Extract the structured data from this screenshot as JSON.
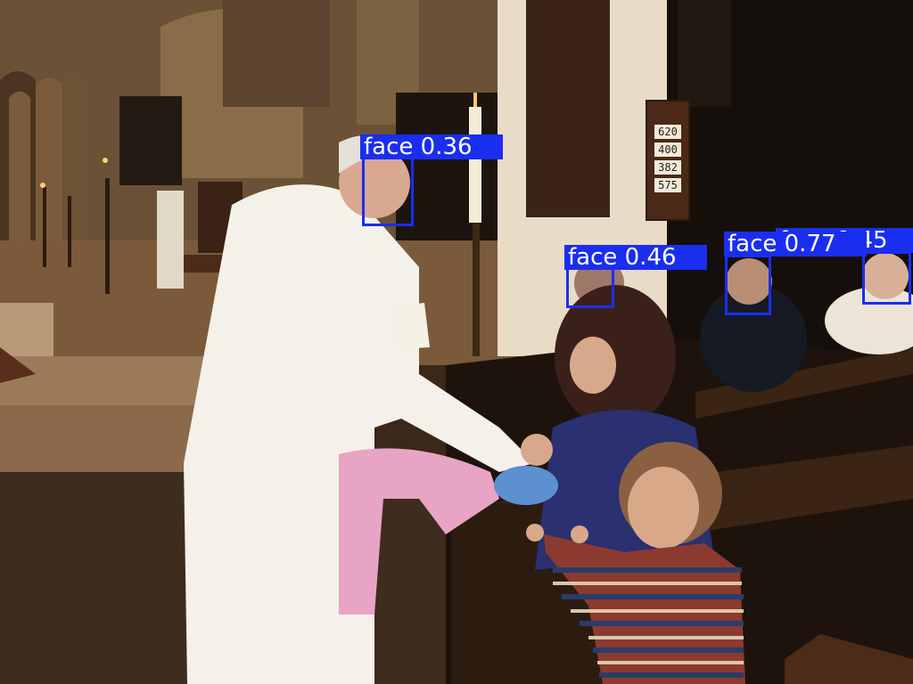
{
  "scene": {
    "hymn_board_numbers": [
      "620",
      "400",
      "382",
      "575"
    ]
  },
  "detections": [
    {
      "class": "face",
      "score": "0.36",
      "label": "face 0.36"
    },
    {
      "class": "face",
      "score": "0.46",
      "label": "face 0.46"
    },
    {
      "class": "face",
      "score": "0.77",
      "label": "face 0.77"
    },
    {
      "class": "face",
      "score": "0.45",
      "label": "face 0.45"
    }
  ],
  "colors": {
    "box": "#1a2ef0",
    "label_text": "#ffffff"
  }
}
